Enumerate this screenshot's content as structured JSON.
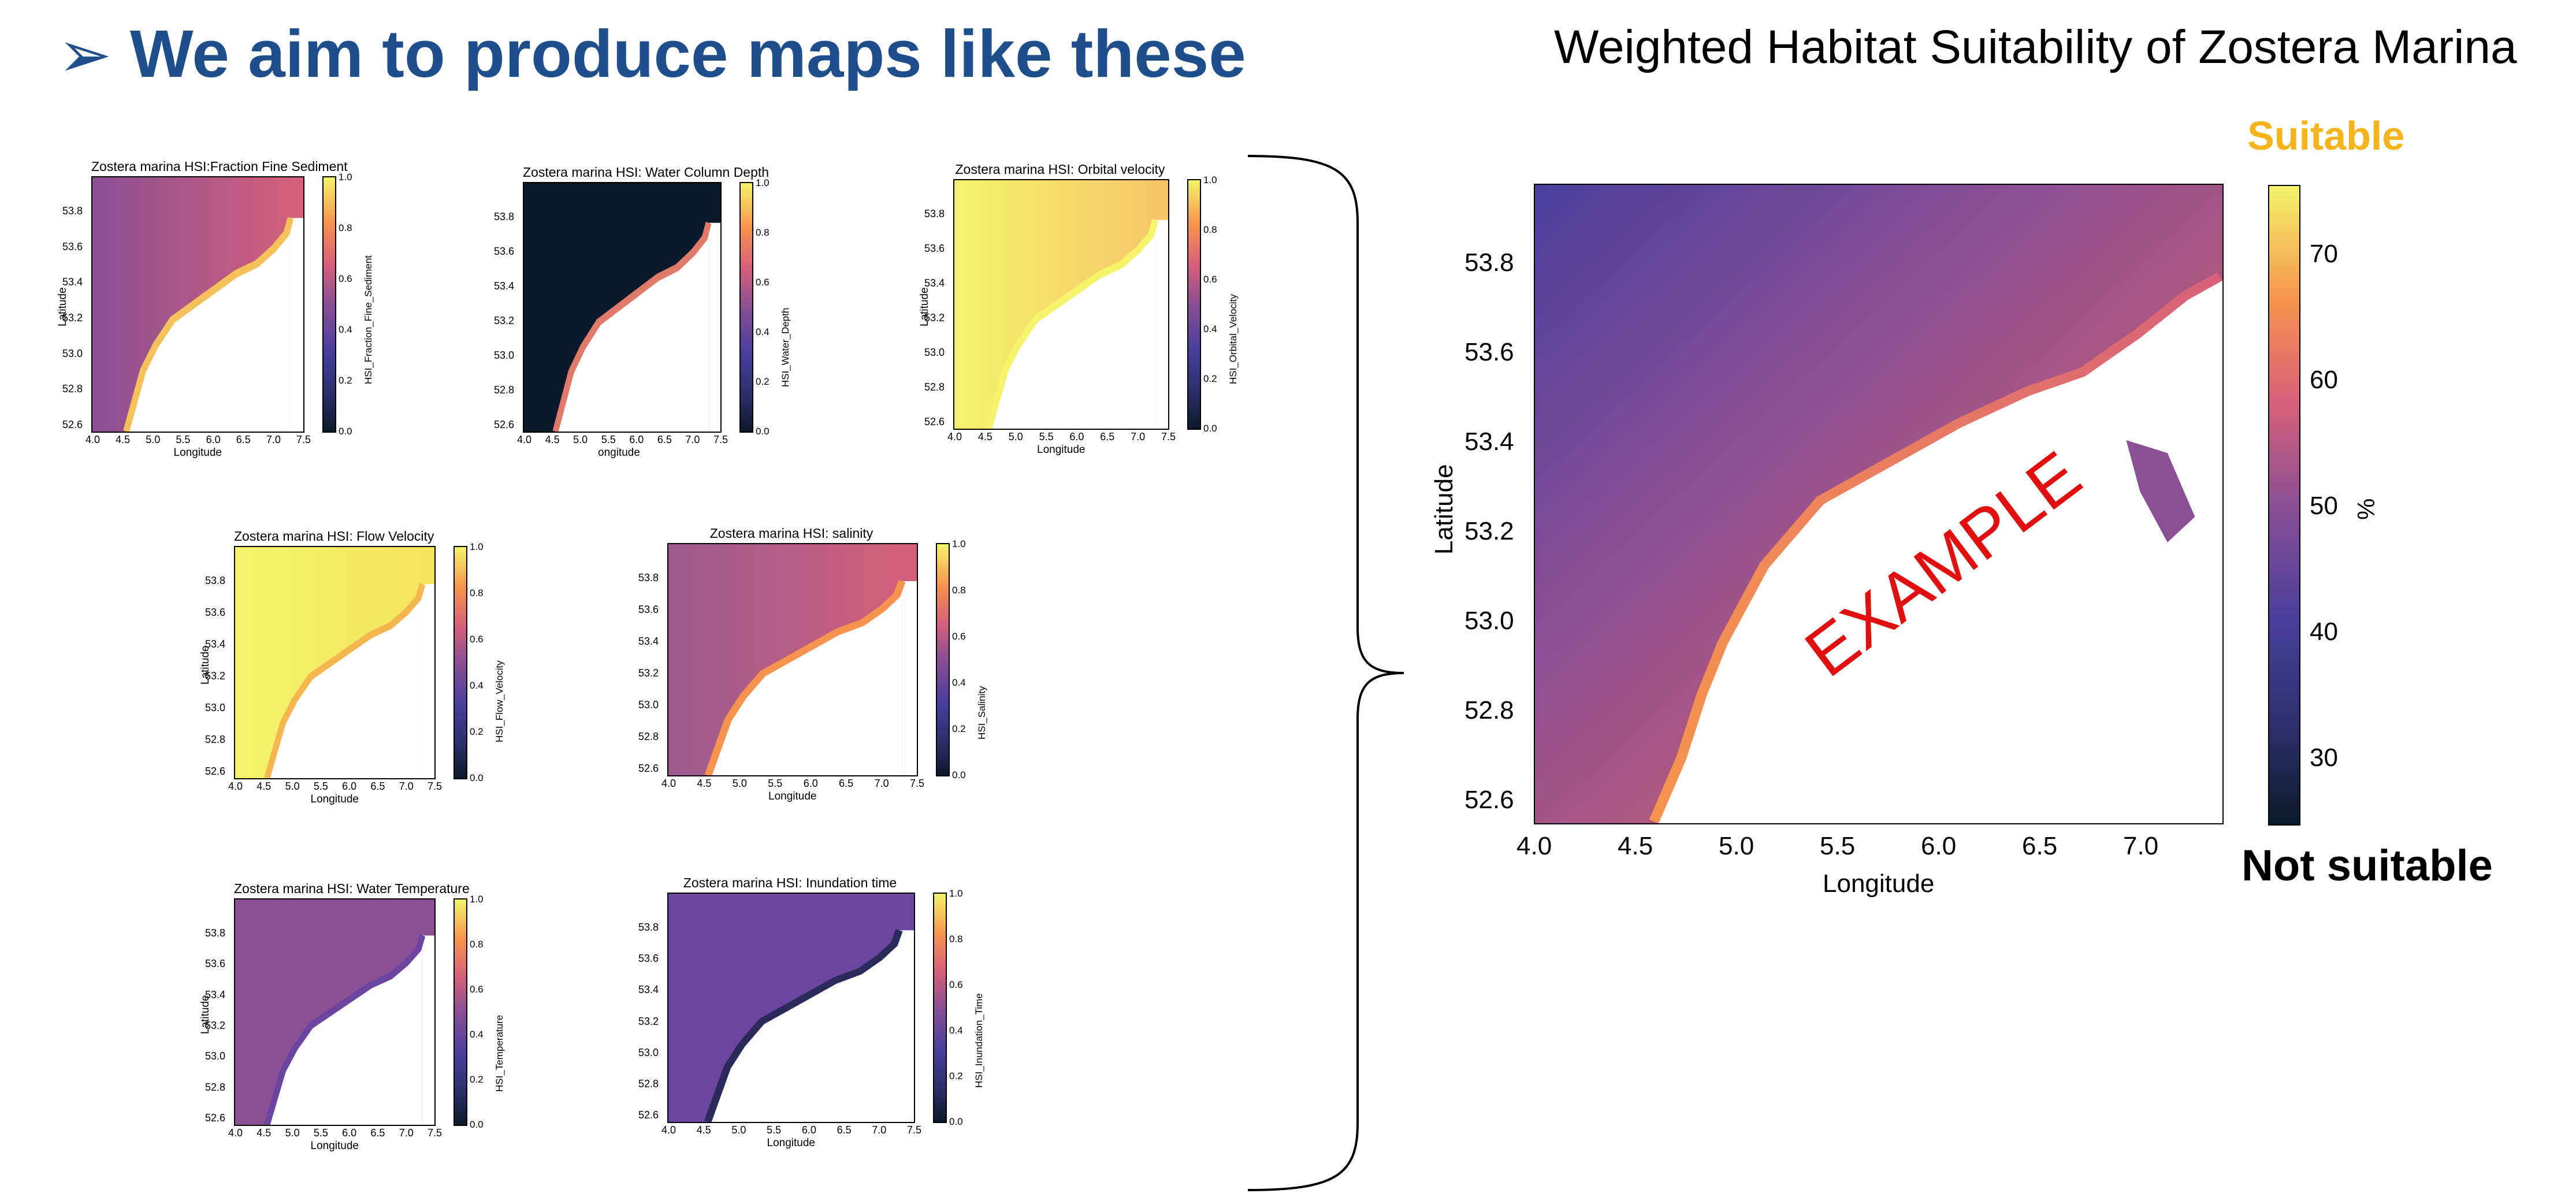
{
  "heading": {
    "arrow": "➢",
    "text": "We aim to produce maps like these"
  },
  "panels": [
    {
      "title": "Zostera marina HSI:Fraction Fine Sediment",
      "cbar_label": "HSI_Fraction_Fine_Sediment",
      "xlabel": "Longitude",
      "ylabel": "Latitude"
    },
    {
      "title": "Zostera marina HSI: Water Column Depth",
      "cbar_label": "HSI_Water_Depth",
      "xlabel": "ongitude",
      "ylabel": ""
    },
    {
      "title": "Zostera marina HSI: Orbital velocity",
      "cbar_label": "HSI_Orbital_Velocity",
      "xlabel": "Longitude",
      "ylabel": "Latitude"
    },
    {
      "title": "Zostera marina HSI:  Flow Velocity",
      "cbar_label": "HSI_Flow_Velocity",
      "xlabel": "Longitude",
      "ylabel": "Latitude"
    },
    {
      "title": "Zostera marina HSI: salinity",
      "cbar_label": "HSI_Salinity",
      "xlabel": "Longitude",
      "ylabel": ""
    },
    {
      "title": "Zostera marina HSI: Water Temperature",
      "cbar_label": "HSI_Temperature",
      "xlabel": "Longitude",
      "ylabel": "Latitude"
    },
    {
      "title": "Zostera marina HSI: Inundation time",
      "cbar_label": "HSI_Inundation_Time",
      "xlabel": "Longitude",
      "ylabel": ""
    }
  ],
  "small_axes": {
    "x_ticks": [
      "4.0",
      "4.5",
      "5.0",
      "5.5",
      "6.0",
      "6.5",
      "7.0",
      "7.5"
    ],
    "y_ticks": [
      "53.8",
      "53.6",
      "53.4",
      "53.2",
      "53.0",
      "52.8",
      "52.6"
    ],
    "cbar_ticks": [
      "1.0",
      "0.8",
      "0.6",
      "0.4",
      "0.2",
      "0.0"
    ]
  },
  "main": {
    "title": "Weighted Habitat Suitability of Zostera Marina",
    "suitable_label": "Suitable",
    "not_suitable_label": "Not suitable",
    "watermark": "EXAMPLE",
    "xlabel": "Longitude",
    "ylabel": "Latitude",
    "cbar_label": "%",
    "x_ticks": [
      "4.0",
      "4.5",
      "5.0",
      "5.5",
      "6.0",
      "6.5",
      "7.0"
    ],
    "y_ticks": [
      "53.8",
      "53.6",
      "53.4",
      "53.2",
      "53.0",
      "52.8",
      "52.6"
    ],
    "cbar_ticks": [
      "70",
      "60",
      "50",
      "40",
      "30"
    ]
  },
  "colors": {
    "heading": "#1f4e8c",
    "suitable": "#f5b31c",
    "watermark": "#e01010",
    "colormap": [
      "#0b1a2a",
      "#4a3f9e",
      "#8a4f94",
      "#d6607a",
      "#f6934f",
      "#f4f36a"
    ]
  }
}
